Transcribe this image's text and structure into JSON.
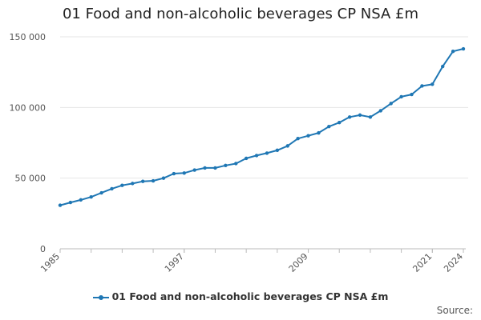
{
  "chart_data": {
    "type": "line",
    "title": "01 Food and non-alcoholic beverages CP NSA £m",
    "xlabel": "",
    "ylabel": "",
    "ylim": [
      0,
      150000
    ],
    "xlim": [
      1985,
      2024
    ],
    "y_ticks": [
      0,
      50000,
      100000,
      150000
    ],
    "y_tick_labels": [
      "0",
      "50 000",
      "100 000",
      "150 000"
    ],
    "x_ticks": [
      1985,
      1997,
      2009,
      2021,
      2024
    ],
    "x_tick_labels": [
      "1985",
      "1997",
      "2009",
      "2021",
      "2024"
    ],
    "legend_position": "bottom",
    "series": [
      {
        "name": "01 Food and non-alcoholic beverages CP NSA £m",
        "color": "#1f77b4",
        "x": [
          1985,
          1986,
          1987,
          1988,
          1989,
          1990,
          1991,
          1992,
          1993,
          1994,
          1995,
          1996,
          1997,
          1998,
          1999,
          2000,
          2001,
          2002,
          2003,
          2004,
          2005,
          2006,
          2007,
          2008,
          2009,
          2010,
          2011,
          2012,
          2013,
          2014,
          2015,
          2016,
          2017,
          2018,
          2019,
          2020,
          2021,
          2022,
          2023,
          2024
        ],
        "values": [
          30800,
          32800,
          34600,
          36700,
          39600,
          42500,
          44900,
          46200,
          47700,
          48100,
          50000,
          53200,
          53600,
          55700,
          57200,
          57200,
          59000,
          60300,
          64000,
          66000,
          67700,
          69700,
          72800,
          78000,
          80000,
          82000,
          86500,
          89300,
          93200,
          94600,
          93200,
          97700,
          102800,
          107600,
          109200,
          115200,
          116400,
          129000,
          139700,
          141500
        ]
      }
    ]
  },
  "legend": {
    "label": "01 Food and non-alcoholic beverages CP NSA £m"
  },
  "footer": {
    "source_label": "Source:"
  }
}
